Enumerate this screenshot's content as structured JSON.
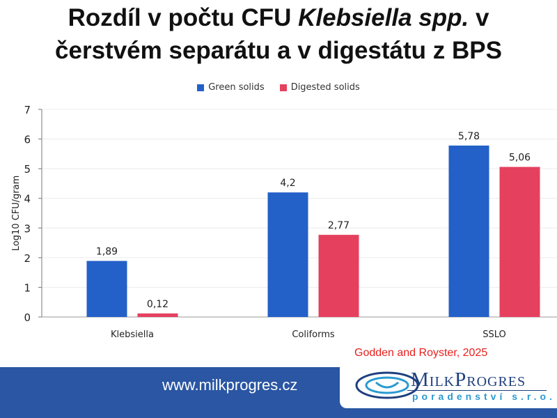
{
  "chart_data": {
    "type": "bar",
    "title_line1": "Rozdíl v počtu CFU ",
    "title_italic": "Klebsiella spp.",
    "title_rest1": " v",
    "title_line2": "čerstvém separátu a v digestátu z BPS",
    "categories": [
      "Klebsiella",
      "Coliforms",
      "SSLO"
    ],
    "series": [
      {
        "name": "Green solids",
        "color": "#2360c8",
        "values": [
          1.89,
          4.2,
          5.78
        ],
        "labels": [
          "1,89",
          "4,2",
          "5,78"
        ]
      },
      {
        "name": "Digested solids",
        "color": "#e5415f",
        "values": [
          0.12,
          2.77,
          5.06
        ],
        "labels": [
          "0,12",
          "2,77",
          "5,06"
        ]
      }
    ],
    "ylabel": "Log10 CFU/gram",
    "xlabel": "",
    "ylim": [
      0,
      7
    ],
    "yticks": [
      "0",
      "1",
      "2",
      "3",
      "4",
      "5",
      "6",
      "7"
    ],
    "grid": true,
    "legend": "top"
  },
  "source": "Godden and Royster, 2025",
  "footer": {
    "url": "www.milkprogres.cz",
    "logo_main": "MilkProgres",
    "logo_sub": "poradenství s.r.o."
  }
}
